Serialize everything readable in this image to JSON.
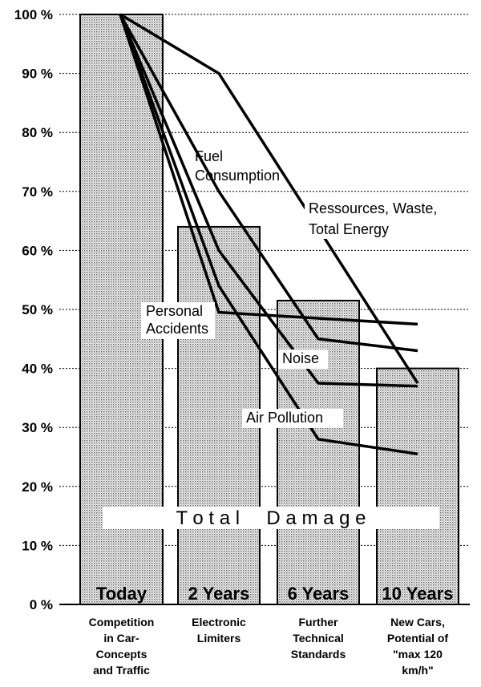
{
  "chart_data": {
    "type": "bar",
    "ylim": [
      0,
      100
    ],
    "y_tick_labels": [
      "0 %",
      "10 %",
      "20 %",
      "30 %",
      "40 %",
      "50 %",
      "60 %",
      "70 %",
      "80 %",
      "90 %",
      "100 %"
    ],
    "y_ticks": [
      0,
      10,
      20,
      30,
      40,
      50,
      60,
      70,
      80,
      90,
      100
    ],
    "grid": true,
    "categories": [
      [
        "Competition",
        "in Car-",
        "Concepts",
        "and Traffic"
      ],
      [
        "Electronic",
        "Limiters"
      ],
      [
        "Further",
        "Technical",
        "Standards"
      ],
      [
        "New Cars,",
        "Potential of",
        "\"max 120",
        "km/h\""
      ]
    ],
    "bar_labels": [
      "Today",
      "2 Years",
      "6 Years",
      "10 Years"
    ],
    "series": [
      {
        "name": "Total Damage",
        "kind": "bar",
        "values": [
          100,
          64,
          51.5,
          40
        ]
      },
      {
        "name": "Ressources, Waste, Total Energy",
        "kind": "line",
        "values": [
          100,
          90,
          null,
          37.5
        ]
      },
      {
        "name": "Fuel Consumption",
        "kind": "line",
        "values": [
          100,
          70,
          45,
          43
        ]
      },
      {
        "name": "Personal Accidents",
        "kind": "line",
        "values": [
          100,
          49.5,
          null,
          47.5
        ]
      },
      {
        "name": "Noise",
        "kind": "line",
        "values": [
          100,
          60,
          37.5,
          37
        ]
      },
      {
        "name": "Air Pollution",
        "kind": "line",
        "values": [
          100,
          54,
          28,
          25.5
        ]
      }
    ],
    "annotations": {
      "ressources": [
        "Ressources, Waste,",
        "Total Energy"
      ],
      "fuel": [
        "Fuel",
        "Consumption"
      ],
      "accidents": [
        "Personal",
        "Accidents"
      ],
      "noise": "Noise",
      "air": "Air Pollution",
      "total_damage": "T o t a l     D a m a g e"
    }
  }
}
